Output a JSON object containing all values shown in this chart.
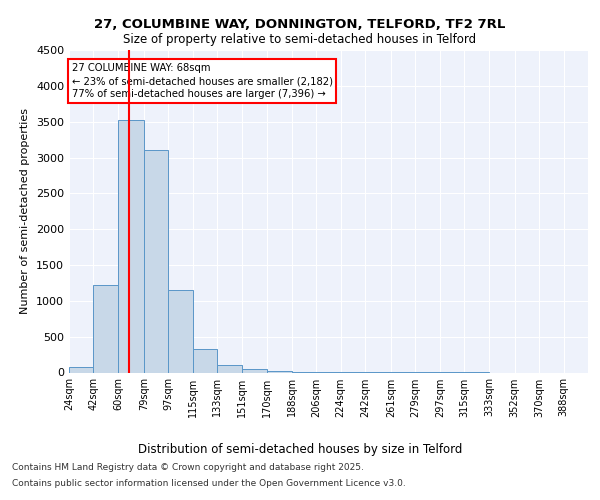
{
  "title": "27, COLUMBINE WAY, DONNINGTON, TELFORD, TF2 7RL",
  "subtitle": "Size of property relative to semi-detached houses in Telford",
  "xlabel": "Distribution of semi-detached houses by size in Telford",
  "ylabel": "Number of semi-detached properties",
  "bin_labels": [
    "24sqm",
    "42sqm",
    "60sqm",
    "79sqm",
    "97sqm",
    "115sqm",
    "133sqm",
    "151sqm",
    "170sqm",
    "188sqm",
    "206sqm",
    "224sqm",
    "242sqm",
    "261sqm",
    "279sqm",
    "297sqm",
    "315sqm",
    "333sqm",
    "352sqm",
    "370sqm",
    "388sqm"
  ],
  "bin_edges": [
    24,
    42,
    60,
    79,
    97,
    115,
    133,
    151,
    170,
    188,
    206,
    224,
    242,
    261,
    279,
    297,
    315,
    333,
    352,
    370,
    388
  ],
  "counts": [
    80,
    1220,
    3520,
    3110,
    1150,
    330,
    105,
    50,
    15,
    8,
    5,
    3,
    2,
    2,
    1,
    1,
    1,
    0,
    0,
    0
  ],
  "bar_color": "#c8d8e8",
  "bar_edge_color": "#5a96c8",
  "property_size": 68,
  "vline_color": "red",
  "annotation_line1": "27 COLUMBINE WAY: 68sqm",
  "annotation_line2": "← 23% of semi-detached houses are smaller (2,182)",
  "annotation_line3": "77% of semi-detached houses are larger (7,396) →",
  "annotation_box_color": "white",
  "annotation_box_edge": "red",
  "ylim": [
    0,
    4500
  ],
  "yticks": [
    0,
    500,
    1000,
    1500,
    2000,
    2500,
    3000,
    3500,
    4000,
    4500
  ],
  "footer_line1": "Contains HM Land Registry data © Crown copyright and database right 2025.",
  "footer_line2": "Contains public sector information licensed under the Open Government Licence v3.0.",
  "bg_color": "#eef2fb",
  "grid_color": "#ffffff"
}
